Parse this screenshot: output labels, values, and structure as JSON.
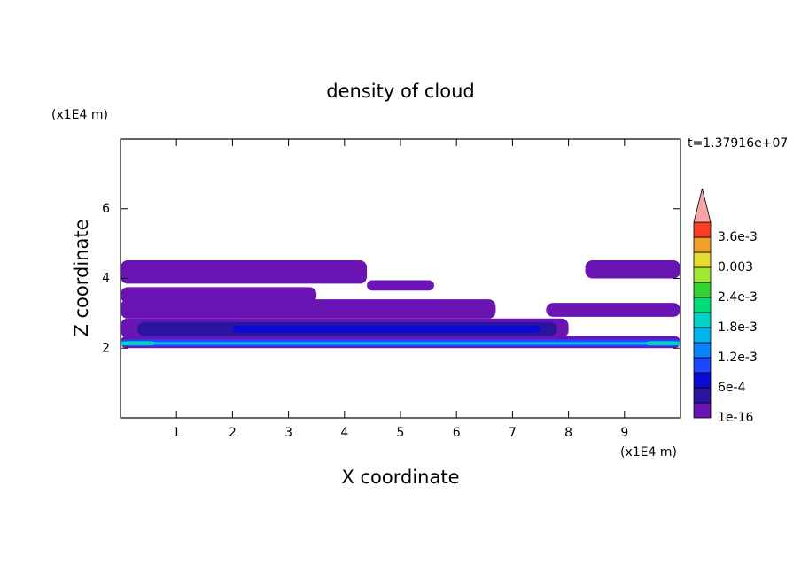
{
  "chart_data": {
    "type": "contour",
    "title": "density of cloud",
    "x_label": "X coordinate",
    "y_label": "Z coordinate",
    "x_unit": "(x1E4 m)",
    "y_unit": "(x1E4 m)",
    "annotation": "t=1.37916e+07",
    "xlim": [
      0,
      10
    ],
    "ylim": [
      0,
      8
    ],
    "xticks": [
      1,
      2,
      3,
      4,
      5,
      6,
      7,
      8,
      9
    ],
    "yticks": [
      2,
      4,
      6
    ],
    "cells": [
      {
        "x": [
          0,
          4.4
        ],
        "z": [
          3.85,
          4.52
        ],
        "value": 0.0001
      },
      {
        "x": [
          0,
          3.5
        ],
        "z": [
          3.3,
          3.75
        ],
        "value": 0.0001
      },
      {
        "x": [
          4.4,
          5.6
        ],
        "z": [
          3.65,
          3.95
        ],
        "value": 0.0001
      },
      {
        "x": [
          0,
          6.7
        ],
        "z": [
          2.85,
          3.4
        ],
        "value": 0.0001
      },
      {
        "x": [
          0,
          8
        ],
        "z": [
          2.3,
          2.85
        ],
        "value": 0.0001
      },
      {
        "x": [
          0,
          10
        ],
        "z": [
          2.0,
          2.35
        ],
        "value": 0.0001
      },
      {
        "x": [
          8.3,
          10
        ],
        "z": [
          4.0,
          4.52
        ],
        "value": 0.0001
      },
      {
        "x": [
          7.6,
          10
        ],
        "z": [
          2.9,
          3.3
        ],
        "value": 0.0001
      },
      {
        "x": [
          0.3,
          7.8
        ],
        "z": [
          2.35,
          2.75
        ],
        "value": 0.0005
      },
      {
        "x": [
          2,
          7.5
        ],
        "z": [
          2.45,
          2.65
        ],
        "value": 0.0008
      },
      {
        "x": [
          0,
          10
        ],
        "z": [
          2.05,
          2.25
        ],
        "value": 0.0011
      },
      {
        "x": [
          0.5,
          9.8
        ],
        "z": [
          2.1,
          2.18
        ],
        "value": 0.0016
      },
      {
        "x": [
          0,
          0.6
        ],
        "z": [
          2.08,
          2.2
        ],
        "value": 0.002
      },
      {
        "x": [
          9.4,
          10
        ],
        "z": [
          2.08,
          2.2
        ],
        "value": 0.002
      }
    ],
    "colorbar": {
      "levels": [
        1e-16,
        0.0003,
        0.0006,
        0.0009,
        0.0012,
        0.0015,
        0.0018,
        0.0021,
        0.0024,
        0.0027,
        0.003,
        0.0033,
        0.0036
      ],
      "level_labels": [
        "1e-16",
        null,
        "6e-4",
        null,
        "1.2e-3",
        null,
        "1.8e-3",
        null,
        "2.4e-3",
        null,
        "0.003",
        null,
        "3.6e-3"
      ],
      "colors": [
        "#6a14b4",
        "#2a14a0",
        "#0a0ad2",
        "#1e46ff",
        "#0a82ff",
        "#00b4f0",
        "#00d2c8",
        "#00dc78",
        "#32d232",
        "#a0e632",
        "#e6dc32",
        "#f0a028",
        "#fa3c28"
      ],
      "over_color": "#f4a6a6"
    }
  }
}
